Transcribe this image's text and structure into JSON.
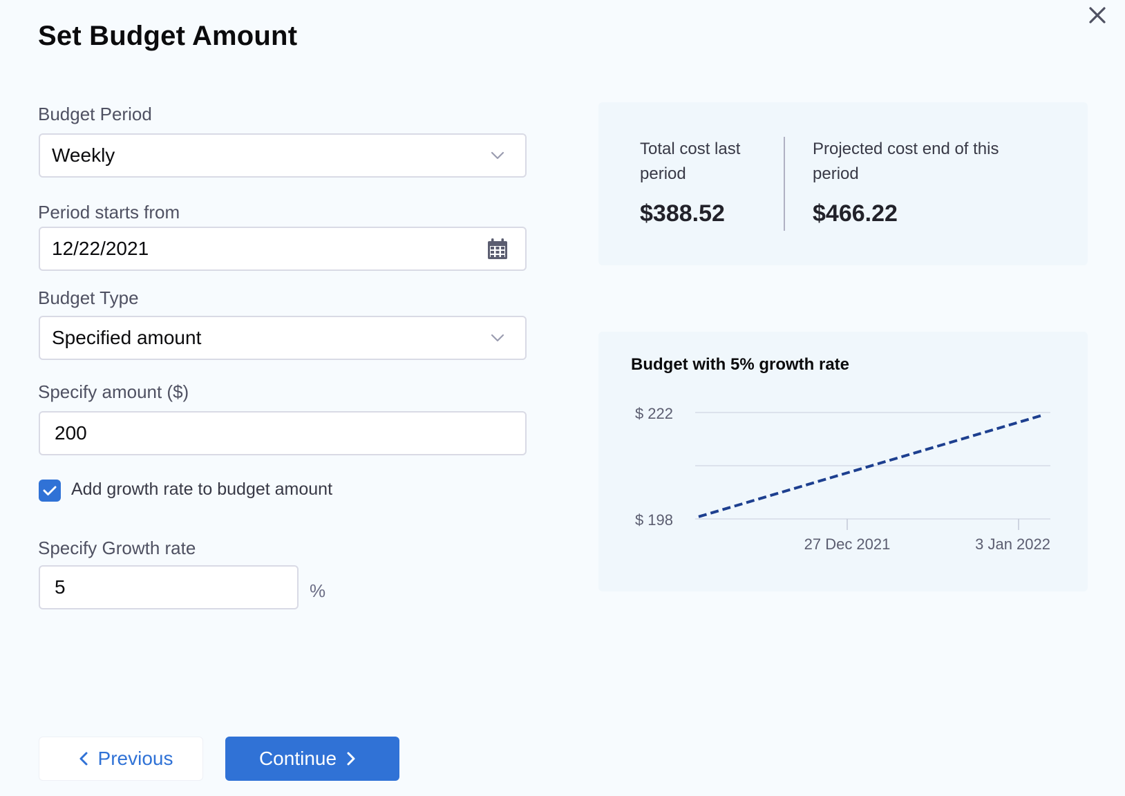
{
  "dialog": {
    "title": "Set Budget Amount",
    "close_icon": "close-icon"
  },
  "form": {
    "budget_period": {
      "label": "Budget Period",
      "value": "Weekly"
    },
    "period_start": {
      "label": "Period starts from",
      "value": "12/22/2021"
    },
    "budget_type": {
      "label": "Budget Type",
      "value": "Specified amount"
    },
    "amount": {
      "label": "Specify amount ($)",
      "value": "200"
    },
    "growth_checkbox": {
      "label": "Add growth rate to budget amount",
      "checked": true
    },
    "growth_rate": {
      "label": "Specify Growth rate",
      "value": "5",
      "unit": "%"
    }
  },
  "summary": {
    "last_period": {
      "label": "Total cost last period",
      "value": "$388.52"
    },
    "projected": {
      "label": "Projected cost end of this period",
      "value": "$466.22"
    }
  },
  "footer": {
    "previous_label": "Previous",
    "continue_label": "Continue"
  },
  "colors": {
    "accent": "#3072d6",
    "line": "#1d3f8f"
  },
  "chart_data": {
    "type": "line",
    "title": "Budget with 5% growth rate",
    "x_ticks": [
      "27 Dec 2021",
      "3 Jan 2022"
    ],
    "y_ticks": [
      "$ 222",
      "$ 198"
    ],
    "ylim": [
      198,
      222
    ],
    "series": [
      {
        "x": [
          "22 Dec 2021",
          "7 Jan 2022"
        ],
        "y": [
          198.5,
          221.5
        ],
        "style": "dashed"
      }
    ],
    "grid": true
  }
}
